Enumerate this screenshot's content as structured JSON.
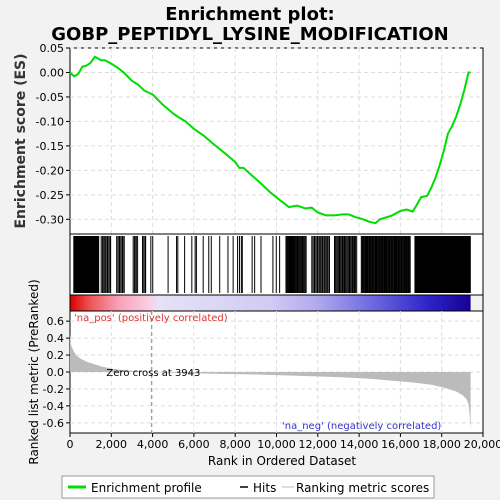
{
  "chart_data": {
    "type": "line",
    "title_line1": "Enrichment plot:",
    "title_line2": "GOBP_PEPTIDYL_LYSINE_MODIFICATION",
    "es_ylabel": "Enrichment score (ES)",
    "rank_ylabel": "Ranked list metric (PreRanked)",
    "xlabel": "Rank in Ordered Dataset",
    "xlim": [
      0,
      20000
    ],
    "es_ylim": [
      -0.33,
      0.05
    ],
    "rank_ylim": [
      -0.72,
      0.72
    ],
    "x_ticks": [
      0,
      2000,
      4000,
      6000,
      8000,
      10000,
      12000,
      14000,
      16000,
      18000,
      20000
    ],
    "x_tick_labels": [
      "0",
      "2,000",
      "4,000",
      "6,000",
      "8,000",
      "10,000",
      "12,000",
      "14,000",
      "16,000",
      "18,000",
      "20,000"
    ],
    "es_ticks": [
      0.05,
      0.0,
      -0.05,
      -0.1,
      -0.15,
      -0.2,
      -0.25,
      -0.3
    ],
    "es_tick_labels": [
      "0.05",
      "0.00",
      "-0.05",
      "-0.10",
      "-0.15",
      "-0.20",
      "-0.25",
      "-0.30"
    ],
    "rank_ticks": [
      0.6,
      0.4,
      0.2,
      0.0,
      -0.2,
      -0.4,
      -0.6
    ],
    "rank_tick_labels": [
      "0.6",
      "0.4",
      "0.2",
      "0.0",
      "-0.2",
      "-0.4",
      "-0.6"
    ],
    "total_genes": 19400,
    "zero_cross": 3943,
    "zero_cross_label": "Zero cross at 3943",
    "pos_label": "'na_pos' (positively correlated)",
    "neg_label": "'na_neg' (negatively correlated)",
    "enrichment_profile": {
      "x": [
        0,
        200,
        400,
        600,
        800,
        1000,
        1200,
        1300,
        1500,
        1700,
        2000,
        2300,
        2600,
        3000,
        3300,
        3600,
        4000,
        4500,
        5000,
        5200,
        5600,
        6000,
        6500,
        7000,
        7500,
        8000,
        8200,
        8400,
        8800,
        9200,
        9700,
        10200,
        10600,
        11000,
        11400,
        11700,
        12000,
        12400,
        12800,
        13200,
        13500,
        13800,
        14200,
        14500,
        14800,
        15000,
        15300,
        15600,
        16000,
        16300,
        16600,
        16800,
        17000,
        17300,
        17500,
        17700,
        17900,
        18100,
        18300,
        18500,
        18700,
        18900,
        19100,
        19300,
        19400
      ],
      "y": [
        0.0,
        -0.008,
        -0.003,
        0.012,
        0.014,
        0.02,
        0.032,
        0.03,
        0.025,
        0.025,
        0.018,
        0.01,
        0.0,
        -0.017,
        -0.025,
        -0.037,
        -0.045,
        -0.066,
        -0.084,
        -0.09,
        -0.1,
        -0.115,
        -0.13,
        -0.148,
        -0.165,
        -0.183,
        -0.195,
        -0.195,
        -0.21,
        -0.225,
        -0.245,
        -0.262,
        -0.275,
        -0.272,
        -0.278,
        -0.276,
        -0.286,
        -0.292,
        -0.292,
        -0.29,
        -0.29,
        -0.295,
        -0.3,
        -0.305,
        -0.308,
        -0.3,
        -0.296,
        -0.292,
        -0.283,
        -0.28,
        -0.284,
        -0.27,
        -0.255,
        -0.252,
        -0.235,
        -0.215,
        -0.19,
        -0.16,
        -0.125,
        -0.11,
        -0.09,
        -0.065,
        -0.035,
        0.0,
        0.0
      ]
    },
    "hit_segments": [
      [
        180,
        1400,
        65
      ],
      [
        1500,
        2000,
        10
      ],
      [
        2250,
        2650,
        8
      ],
      [
        3050,
        3300,
        5
      ],
      [
        3500,
        3700,
        4
      ],
      [
        3900,
        4050,
        2
      ],
      [
        4700,
        4800,
        1
      ],
      [
        5150,
        5250,
        2
      ],
      [
        5500,
        5600,
        1
      ],
      [
        5850,
        5950,
        1
      ],
      [
        6050,
        6150,
        2
      ],
      [
        6400,
        6500,
        1
      ],
      [
        6700,
        6900,
        2
      ],
      [
        7200,
        7300,
        1
      ],
      [
        7600,
        7700,
        1
      ],
      [
        7850,
        7950,
        1
      ],
      [
        8100,
        8400,
        4
      ],
      [
        8800,
        9000,
        2
      ],
      [
        9200,
        9300,
        1
      ],
      [
        9800,
        10200,
        3
      ],
      [
        10450,
        11450,
        25
      ],
      [
        11700,
        12600,
        18
      ],
      [
        12800,
        13900,
        25
      ],
      [
        14100,
        16500,
        70
      ],
      [
        16700,
        19400,
        120
      ]
    ],
    "ranked_metric": {
      "x": [
        0,
        50,
        150,
        300,
        500,
        800,
        1200,
        1600,
        2000,
        2500,
        3000,
        3500,
        3943,
        5000,
        7000,
        9000,
        11000,
        13000,
        14500,
        15500,
        16500,
        17500,
        18200,
        18700,
        19000,
        19200,
        19300,
        19350,
        19400
      ],
      "y": [
        0.45,
        0.32,
        0.26,
        0.2,
        0.16,
        0.12,
        0.09,
        0.06,
        0.04,
        0.025,
        0.015,
        0.007,
        0.0,
        -0.01,
        -0.02,
        -0.03,
        -0.045,
        -0.06,
        -0.08,
        -0.1,
        -0.12,
        -0.15,
        -0.19,
        -0.23,
        -0.27,
        -0.32,
        -0.38,
        -0.5,
        -0.68
      ]
    },
    "legend": [
      {
        "name": "Enrichment profile",
        "color": "#00dd00"
      },
      {
        "name": "Hits",
        "color": "#000000"
      },
      {
        "name": "Ranking metric scores",
        "color": "#bbbbbb"
      }
    ],
    "colors": {
      "es_line": "#00dd00",
      "hits": "#000000",
      "metric_fill": "#bbbbbb",
      "pos_text": "#dd3333",
      "neg_text": "#3333cc",
      "zero_line": "#999999"
    }
  }
}
